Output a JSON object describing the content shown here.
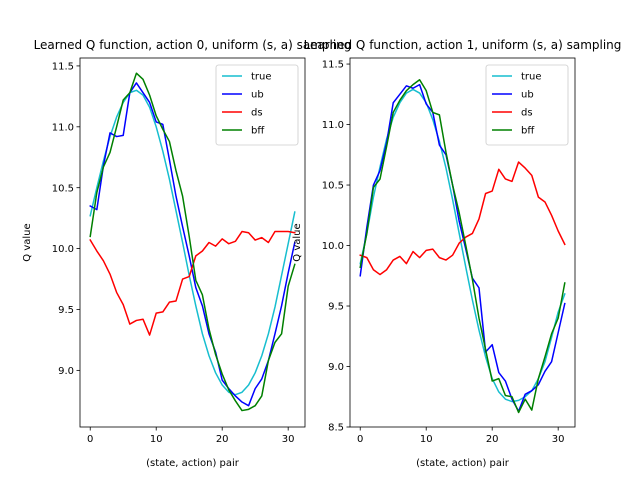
{
  "chart_data": [
    {
      "type": "line",
      "title": "Learned Q function, action 0, uniform (s, a) sampling",
      "xlabel": "(state, action) pair",
      "ylabel": "Q value",
      "xlim": [
        -1.55,
        32.55
      ],
      "ylim": [
        8.535,
        11.565
      ],
      "xticks": [
        0,
        10,
        20,
        30
      ],
      "xtick_labels": [
        "0",
        "10",
        "20",
        "30"
      ],
      "yticks": [
        9.0,
        9.5,
        10.0,
        10.5,
        11.0,
        11.5
      ],
      "ytick_labels": [
        "9.0",
        "9.5",
        "10.0",
        "10.5",
        "11.0",
        "11.5"
      ],
      "legend_position": "upper right",
      "x": [
        0,
        1,
        2,
        3,
        4,
        5,
        6,
        7,
        8,
        9,
        10,
        11,
        12,
        13,
        14,
        15,
        16,
        17,
        18,
        19,
        20,
        21,
        22,
        23,
        24,
        25,
        26,
        27,
        28,
        29,
        30,
        31
      ],
      "series": [
        {
          "name": "true",
          "color": "#17becf",
          "values": [
            10.27,
            10.5,
            10.72,
            10.92,
            11.08,
            11.2,
            11.28,
            11.3,
            11.26,
            11.16,
            11.0,
            10.8,
            10.57,
            10.31,
            10.05,
            9.78,
            9.53,
            9.3,
            9.12,
            8.98,
            8.88,
            8.82,
            8.8,
            8.82,
            8.88,
            8.98,
            9.12,
            9.3,
            9.52,
            9.78,
            10.04,
            10.3
          ]
        },
        {
          "name": "ub",
          "color": "#0000ff",
          "values": [
            10.35,
            10.32,
            10.68,
            10.95,
            10.92,
            10.93,
            11.28,
            11.36,
            11.28,
            11.2,
            11.04,
            11.02,
            10.73,
            10.43,
            10.18,
            9.94,
            9.68,
            9.53,
            9.3,
            9.15,
            8.92,
            8.85,
            8.79,
            8.74,
            8.71,
            8.85,
            8.93,
            9.08,
            9.3,
            9.53,
            9.8,
            10.05
          ]
        },
        {
          "name": "ds",
          "color": "#ff0000",
          "values": [
            10.07,
            9.98,
            9.9,
            9.79,
            9.64,
            9.54,
            9.38,
            9.41,
            9.42,
            9.29,
            9.47,
            9.48,
            9.56,
            9.57,
            9.75,
            9.77,
            9.94,
            9.98,
            10.05,
            10.02,
            10.08,
            10.04,
            10.06,
            10.14,
            10.13,
            10.07,
            10.09,
            10.05,
            10.14,
            10.14,
            10.14,
            10.13
          ]
        },
        {
          "name": "bff",
          "color": "#008000",
          "values": [
            10.1,
            10.46,
            10.67,
            10.79,
            11.0,
            11.22,
            11.28,
            11.44,
            11.39,
            11.26,
            11.09,
            10.98,
            10.88,
            10.64,
            10.43,
            10.1,
            9.74,
            9.62,
            9.34,
            9.13,
            8.97,
            8.84,
            8.75,
            8.67,
            8.68,
            8.71,
            8.79,
            9.08,
            9.23,
            9.3,
            9.69,
            9.87
          ]
        }
      ]
    },
    {
      "type": "line",
      "title": "Learned Q function, action 1, uniform (s, a) sampling",
      "xlabel": "(state, action) pair",
      "ylabel": "Q value",
      "xlim": [
        -1.55,
        32.55
      ],
      "ylim": [
        8.5,
        11.55
      ],
      "xticks": [
        0,
        10,
        20,
        30
      ],
      "xtick_labels": [
        "0",
        "10",
        "20",
        "30"
      ],
      "yticks": [
        8.5,
        9.0,
        9.5,
        10.0,
        10.5,
        11.0,
        11.5
      ],
      "ytick_labels": [
        "8.5",
        "9.0",
        "9.5",
        "10.0",
        "10.5",
        "11.0",
        "11.5"
      ],
      "legend_position": "upper right",
      "x": [
        0,
        1,
        2,
        3,
        4,
        5,
        6,
        7,
        8,
        9,
        10,
        11,
        12,
        13,
        14,
        15,
        16,
        17,
        18,
        19,
        20,
        21,
        22,
        23,
        24,
        25,
        26,
        27,
        28,
        29,
        30,
        31
      ],
      "series": [
        {
          "name": "true",
          "color": "#17becf",
          "values": [
            9.85,
            10.1,
            10.4,
            10.65,
            10.88,
            11.06,
            11.18,
            11.26,
            11.29,
            11.26,
            11.18,
            11.04,
            10.86,
            10.64,
            10.38,
            10.1,
            9.82,
            9.55,
            9.3,
            9.08,
            8.9,
            8.79,
            8.73,
            8.71,
            8.72,
            8.75,
            8.8,
            8.9,
            9.04,
            9.24,
            9.45,
            9.6
          ]
        },
        {
          "name": "ub",
          "color": "#0000ff",
          "values": [
            9.75,
            10.15,
            10.5,
            10.62,
            10.85,
            11.18,
            11.25,
            11.32,
            11.3,
            11.33,
            11.17,
            11.1,
            10.83,
            10.75,
            10.5,
            10.2,
            9.97,
            9.73,
            9.65,
            9.12,
            9.18,
            8.95,
            8.88,
            8.73,
            8.63,
            8.77,
            8.8,
            8.85,
            8.96,
            9.04,
            9.28,
            9.52
          ]
        },
        {
          "name": "ds",
          "color": "#ff0000",
          "values": [
            9.92,
            9.9,
            9.8,
            9.76,
            9.8,
            9.88,
            9.91,
            9.85,
            9.95,
            9.9,
            9.96,
            9.97,
            9.9,
            9.88,
            9.92,
            10.02,
            10.07,
            10.1,
            10.22,
            10.43,
            10.45,
            10.63,
            10.55,
            10.53,
            10.69,
            10.64,
            10.58,
            10.4,
            10.36,
            10.25,
            10.12,
            10.01
          ]
        },
        {
          "name": "bff",
          "color": "#008000",
          "values": [
            9.82,
            10.1,
            10.48,
            10.55,
            10.82,
            11.1,
            11.2,
            11.28,
            11.33,
            11.37,
            11.28,
            11.1,
            11.08,
            10.77,
            10.5,
            10.27,
            10.0,
            9.72,
            9.4,
            9.14,
            8.88,
            8.9,
            8.76,
            8.75,
            8.62,
            8.73,
            8.64,
            8.9,
            9.08,
            9.27,
            9.4,
            9.69
          ]
        }
      ]
    }
  ]
}
